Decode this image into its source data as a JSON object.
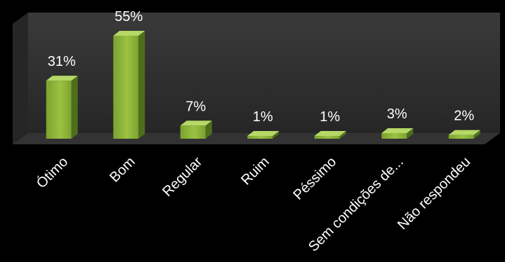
{
  "chart_data": {
    "type": "bar",
    "three_d": true,
    "categories": [
      "Ótimo",
      "Bom",
      "Regular",
      "Ruim",
      "Péssimo",
      "Sem condições de...",
      "Não respondeu"
    ],
    "values": [
      31,
      55,
      7,
      1,
      1,
      3,
      2
    ],
    "data_labels": [
      "31%",
      "55%",
      "7%",
      "1%",
      "1%",
      "3%",
      "2%"
    ],
    "value_unit": "%",
    "ylim": [
      0,
      60
    ],
    "grid": false,
    "legend": false,
    "colors": {
      "background": "#000000",
      "wall_top": "#3a3a3a",
      "wall_bottom": "#262626",
      "floor": "#333333",
      "bar_front": "#7aa32e",
      "bar_front_light": "#9cc243",
      "bar_top": "#b5d867",
      "bar_side": "#4f6e1c",
      "text": "#ffffff"
    }
  }
}
